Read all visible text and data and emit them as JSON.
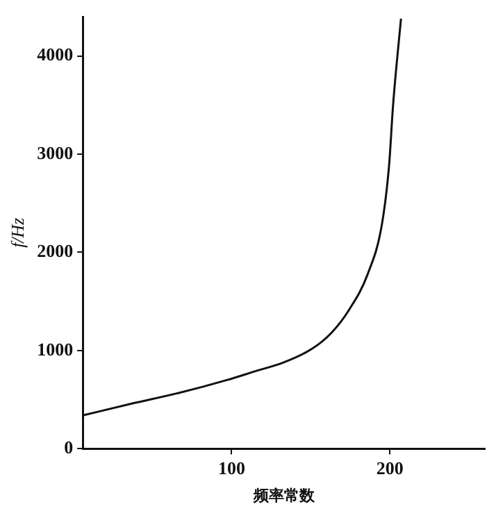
{
  "chart_data": {
    "type": "line",
    "xlabel": "频率常数",
    "ylabel": "f/Hz",
    "x": [
      6,
      37,
      67,
      97,
      115,
      133,
      151,
      163,
      174,
      186,
      195,
      199.5,
      202,
      207
    ],
    "series": [
      {
        "color": "#111111",
        "values": [
          340,
          460,
          570,
          700,
          790,
          880,
          1020,
          1180,
          1410,
          1780,
          2290,
          2890,
          3500,
          4380
        ]
      }
    ],
    "xlim": [
      6,
      260
    ],
    "xticks": [
      100,
      200
    ],
    "ylim": [
      0,
      4400
    ],
    "yticks": [
      0,
      1000,
      2000,
      3000,
      4000
    ],
    "grid": false,
    "legend": false,
    "marker": "none",
    "line_style": "solid"
  }
}
